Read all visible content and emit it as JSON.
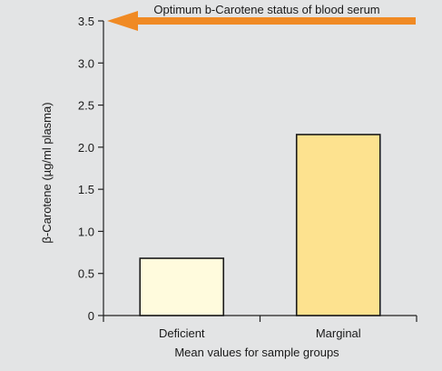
{
  "chart_data": {
    "type": "bar",
    "categories": [
      "Deficient",
      "Marginal"
    ],
    "values": [
      0.68,
      2.15
    ],
    "bar_colors": [
      "#fffbdd",
      "#fde28f"
    ],
    "xlabel": "Mean values for sample groups",
    "ylabel": "β-Carotene (µg/ml plasma)",
    "ylim": [
      0,
      3.5
    ],
    "yticks": [
      0,
      0.5,
      1.0,
      1.5,
      2.0,
      2.5,
      3.0,
      3.5
    ],
    "ytick_labels": [
      "0",
      "0.5",
      "1.0",
      "1.5",
      "2.0",
      "2.5",
      "3.0",
      "3.5"
    ],
    "grid": false,
    "annotation": {
      "text": "Optimum b-Carotene status of blood serum",
      "y": 3.5,
      "arrow_color": "#f08a24",
      "arrow_icon": "left-arrow-icon"
    },
    "colors": {
      "background": "#e3e4e5",
      "axis": "#222222",
      "bar_edge": "#1a1a1a"
    }
  }
}
